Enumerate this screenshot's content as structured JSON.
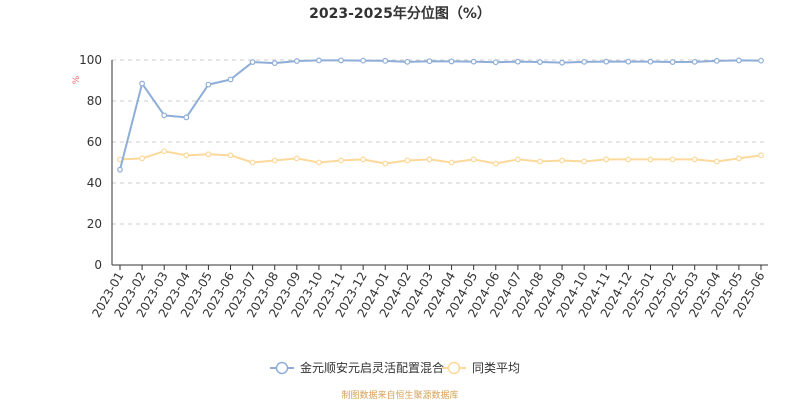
{
  "chart_data": {
    "type": "line",
    "title": "2023-2025年分位图（%）",
    "ylabel": "%",
    "ylim": [
      0,
      100
    ],
    "yticks": [
      0,
      20,
      40,
      60,
      80,
      100
    ],
    "grid": true,
    "legend_position": "bottom-center",
    "categories": [
      "2023-01",
      "2023-02",
      "2023-03",
      "2023-04",
      "2023-05",
      "2023-06",
      "2023-07",
      "2023-08",
      "2023-09",
      "2023-10",
      "2023-11",
      "2023-12",
      "2024-01",
      "2024-02",
      "2024-03",
      "2024-04",
      "2024-05",
      "2024-06",
      "2024-07",
      "2024-08",
      "2024-09",
      "2024-10",
      "2024-11",
      "2024-12",
      "2025-01",
      "2025-02",
      "2025-03",
      "2025-04",
      "2025-05",
      "2025-06"
    ],
    "series": [
      {
        "name": "金元顺安元启灵活配置混合",
        "color": "#8eaed8",
        "values": [
          46.5,
          88.5,
          73,
          72,
          88,
          90.5,
          99,
          98.5,
          99.5,
          99.8,
          99.8,
          99.7,
          99.6,
          99.1,
          99.4,
          99.3,
          99.2,
          98.9,
          99.2,
          99.0,
          98.7,
          99.1,
          99.2,
          99.2,
          99.2,
          99.0,
          99.1,
          99.6,
          99.8,
          99.7
        ]
      },
      {
        "name": "同类平均",
        "color": "#fcd99a",
        "values": [
          51.5,
          52,
          55.5,
          53.5,
          54,
          53.5,
          50,
          51,
          52,
          50,
          51,
          51.5,
          49.5,
          51,
          51.5,
          50,
          51.5,
          49.5,
          51.5,
          50.5,
          51,
          50.5,
          51.5,
          51.5,
          51.5,
          51.5,
          51.5,
          50.5,
          52,
          53.5
        ]
      }
    ]
  },
  "source": "制图数据来自恒生聚源数据库",
  "colors": {
    "axis": "#333333",
    "grid": "#cccccc",
    "text": "#333333",
    "ylabel": "#e06666",
    "source": "#d4a15a"
  }
}
